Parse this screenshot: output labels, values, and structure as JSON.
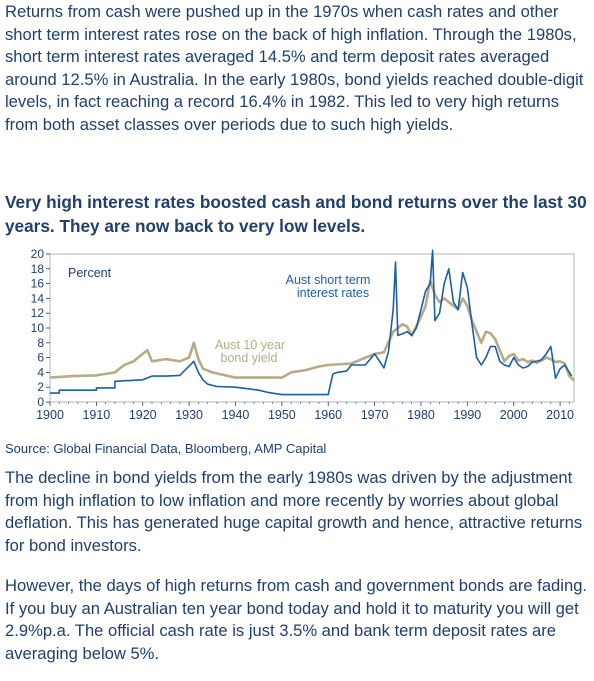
{
  "paragraph_1": "Returns from cash were pushed up in the 1970s when cash rates and other short term interest rates rose on the back of high inflation. Through the 1980s, short term interest rates averaged 14.5% and term deposit rates averaged around 12.5% in Australia. In the early 1980s, bond yields reached double-digit levels, in fact reaching a record 16.4% in 1982. This led to very high returns from both asset classes over periods due to such high yields.",
  "chart_heading": "Very high interest rates boosted cash and bond returns over the last 30 years. They are now back to very low levels.",
  "source": "Source: Global Financial Data, Bloomberg, AMP Capital",
  "paragraph_2": "The decline in bond yields from the early 1980s was driven by the adjustment from high inflation to low inflation and more recently by worries about global deflation. This has generated huge capital growth and hence, attractive returns for bond investors.",
  "paragraph_3": "However, the days of high returns from cash and government bonds are fading. If you buy an Australian ten year bond today and hold it to maturity you will get 2.9%p.a. The official cash rate is just 3.5% and bank term deposit rates are averaging below 5%.",
  "chart_data": {
    "type": "line",
    "title": "",
    "ylabel": "Percent",
    "xlabel": "",
    "xlim": [
      1900,
      2013
    ],
    "ylim": [
      0,
      20
    ],
    "y_ticks": [
      0,
      2,
      4,
      6,
      8,
      10,
      12,
      14,
      16,
      18,
      20
    ],
    "x_ticks": [
      1900,
      1910,
      1920,
      1930,
      1940,
      1950,
      1960,
      1970,
      1980,
      1990,
      2000,
      2010
    ],
    "grid": false,
    "series": [
      {
        "name": "Aust short term interest rates",
        "color": "#1a5fa8",
        "x": [
          1900,
          1902,
          1902,
          1910,
          1910,
          1914,
          1914,
          1920,
          1922,
          1925,
          1928,
          1931,
          1932,
          1933,
          1934,
          1936,
          1940,
          1945,
          1947,
          1950,
          1955,
          1960,
          1961,
          1962,
          1964,
          1965,
          1968,
          1970,
          1971,
          1972,
          1973,
          1974,
          1974.5,
          1975,
          1976,
          1977,
          1978,
          1979,
          1980,
          1981,
          1982,
          1982.5,
          1983,
          1984,
          1985,
          1986,
          1987,
          1988,
          1989,
          1990,
          1991,
          1992,
          1993,
          1994,
          1995,
          1996,
          1997,
          1998,
          1999,
          2000,
          2001,
          2002,
          2003,
          2004,
          2005,
          2006,
          2007,
          2008,
          2008.5,
          2009,
          2010,
          2011,
          2012,
          2012.5
        ],
        "y": [
          1.2,
          1.2,
          1.6,
          1.6,
          1.9,
          1.9,
          2.8,
          3.0,
          3.5,
          3.5,
          3.6,
          5.5,
          4.0,
          3.0,
          2.4,
          2.1,
          2.0,
          1.6,
          1.3,
          1.0,
          1.0,
          1.0,
          3.8,
          4.0,
          4.2,
          5.0,
          5.0,
          6.5,
          5.6,
          4.6,
          6.8,
          12.5,
          18.9,
          9.0,
          9.2,
          9.5,
          9.0,
          10.0,
          12.5,
          15.0,
          16.0,
          20.5,
          11.0,
          12.0,
          16.0,
          18.0,
          13.5,
          12.5,
          17.5,
          15.5,
          10.5,
          6.0,
          5.0,
          6.0,
          7.5,
          7.5,
          5.5,
          5.0,
          4.8,
          6.0,
          5.0,
          4.6,
          4.8,
          5.4,
          5.5,
          5.7,
          6.5,
          7.5,
          5.5,
          3.2,
          4.5,
          5.0,
          4.0,
          3.5
        ]
      },
      {
        "name": "Aust 10 year bond yield",
        "color": "#b7ab86",
        "x": [
          1900,
          1905,
          1910,
          1914,
          1916,
          1918,
          1920,
          1921,
          1922,
          1925,
          1928,
          1930,
          1931,
          1932,
          1933,
          1935,
          1940,
          1945,
          1950,
          1952,
          1955,
          1958,
          1960,
          1965,
          1970,
          1972,
          1974,
          1975,
          1976,
          1977,
          1978,
          1980,
          1981,
          1982,
          1983,
          1984,
          1985,
          1986,
          1987,
          1988,
          1989,
          1990,
          1991,
          1992,
          1993,
          1994,
          1995,
          1996,
          1997,
          1998,
          1999,
          2000,
          2001,
          2002,
          2003,
          2004,
          2005,
          2006,
          2007,
          2008,
          2009,
          2010,
          2011,
          2012,
          2013
        ],
        "y": [
          3.3,
          3.5,
          3.6,
          4.0,
          5.0,
          5.5,
          6.5,
          7.0,
          5.5,
          5.8,
          5.5,
          6.0,
          8.0,
          5.8,
          4.5,
          4.0,
          3.3,
          3.3,
          3.3,
          4.0,
          4.3,
          4.8,
          5.0,
          5.2,
          6.5,
          6.7,
          9.5,
          10.0,
          10.5,
          10.2,
          9.0,
          11.5,
          13.0,
          16.4,
          14.5,
          13.5,
          14.0,
          13.5,
          13.0,
          12.5,
          14.0,
          13.0,
          11.0,
          9.5,
          8.0,
          9.5,
          9.3,
          8.5,
          7.0,
          5.5,
          6.2,
          6.5,
          5.6,
          5.8,
          5.4,
          5.6,
          5.3,
          5.6,
          6.0,
          5.8,
          5.4,
          5.5,
          5.2,
          3.5,
          2.9
        ]
      }
    ],
    "annotations": [
      {
        "text": "Aust short term",
        "text2": "interest rates",
        "series": 0
      },
      {
        "text": "Aust 10 year",
        "text2": "bond yield",
        "series": 1
      }
    ]
  }
}
